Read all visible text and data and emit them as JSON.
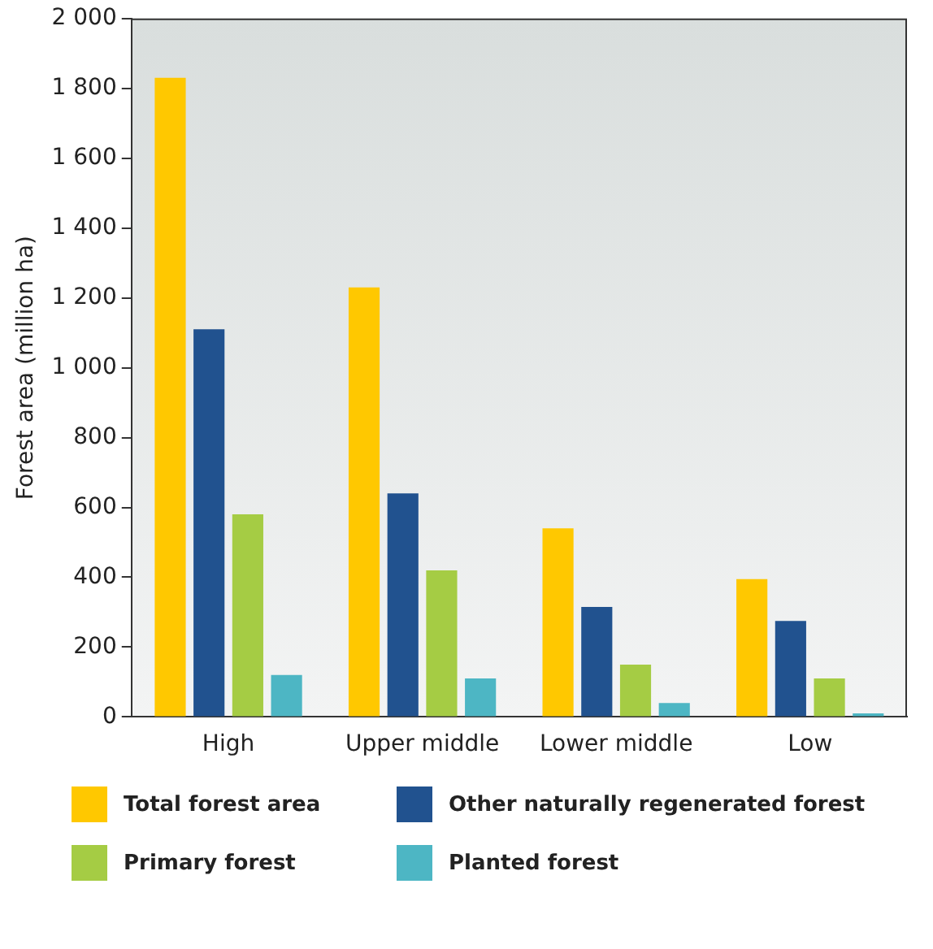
{
  "chart_data": {
    "type": "bar",
    "ylabel": "Forest area (million ha)",
    "categories": [
      "High",
      "Upper middle",
      "Lower middle",
      "Low"
    ],
    "series": [
      {
        "name": "Total forest area",
        "color": "#ffc800",
        "values": [
          1830,
          1230,
          540,
          395
        ]
      },
      {
        "name": "Other naturally regenerated forest",
        "color": "#21528f",
        "values": [
          1110,
          640,
          315,
          275
        ]
      },
      {
        "name": "Primary forest",
        "color": "#a5cc44",
        "values": [
          580,
          420,
          150,
          110
        ]
      },
      {
        "name": "Planted forest",
        "color": "#4db6c4",
        "values": [
          120,
          110,
          40,
          10
        ]
      }
    ],
    "ylim": [
      0,
      2000
    ],
    "yticks": [
      0,
      200,
      400,
      600,
      800,
      {
        "value": 1000,
        "label": "1 000"
      },
      {
        "value": 1200,
        "label": "1 200"
      },
      {
        "value": 1400,
        "label": "1 400"
      },
      {
        "value": 1600,
        "label": "1 600"
      },
      {
        "value": 1800,
        "label": "1 800"
      },
      {
        "value": 2000,
        "label": "2 000"
      }
    ],
    "grid": false,
    "legend": "bottom"
  }
}
